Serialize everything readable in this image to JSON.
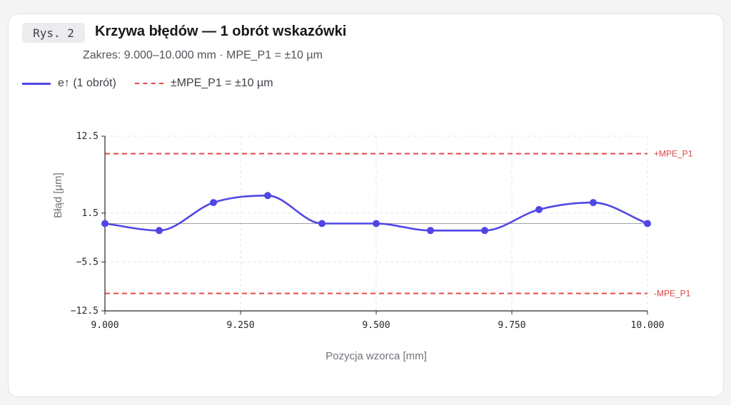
{
  "header": {
    "figure_tag": "Rys. 2",
    "title": "Krzywa błędów — 1 obrót wskazówki",
    "subtitle": "Zakres: 9.000–10.000 mm · MPE_P1 = ±10 µm"
  },
  "legend": {
    "series_label": "e↑ (1 obrót)",
    "mpe_label": "±MPE_P1 = ±10 µm"
  },
  "colors": {
    "series": "#4f46e5",
    "mpe": "#e04848",
    "grid": "#e4e4e7",
    "zero_line": "#a1a1aa"
  },
  "chart_data": {
    "type": "line",
    "title": "Krzywa błędów — 1 obrót wskazówki",
    "xlabel": "Pozycja wzorca [mm]",
    "ylabel": "Błąd [µm]",
    "xlim": [
      9.0,
      10.0
    ],
    "ylim": [
      -12.5,
      12.5
    ],
    "x_ticks": [
      "9.000",
      "9.250",
      "9.500",
      "9.750",
      "10.000"
    ],
    "x_tick_values": [
      9.0,
      9.25,
      9.5,
      9.75,
      10.0
    ],
    "y_ticks": [
      "12.5",
      "1.5",
      "−5.5",
      "−12.5"
    ],
    "y_tick_values": [
      12.5,
      1.5,
      -5.5,
      -12.5
    ],
    "grid": true,
    "legend_position": "top-left",
    "series": [
      {
        "name": "e↑ (1 obrót)",
        "x": [
          9.0,
          9.1,
          9.2,
          9.3,
          9.4,
          9.5,
          9.6,
          9.7,
          9.8,
          9.9,
          10.0
        ],
        "values": [
          0,
          -1,
          3,
          4,
          0,
          0,
          -1,
          -1,
          2,
          3,
          0
        ]
      }
    ],
    "reference_lines": [
      {
        "value": 10,
        "label": "+MPE_P1"
      },
      {
        "value": -10,
        "label": "-MPE_P1"
      }
    ]
  }
}
